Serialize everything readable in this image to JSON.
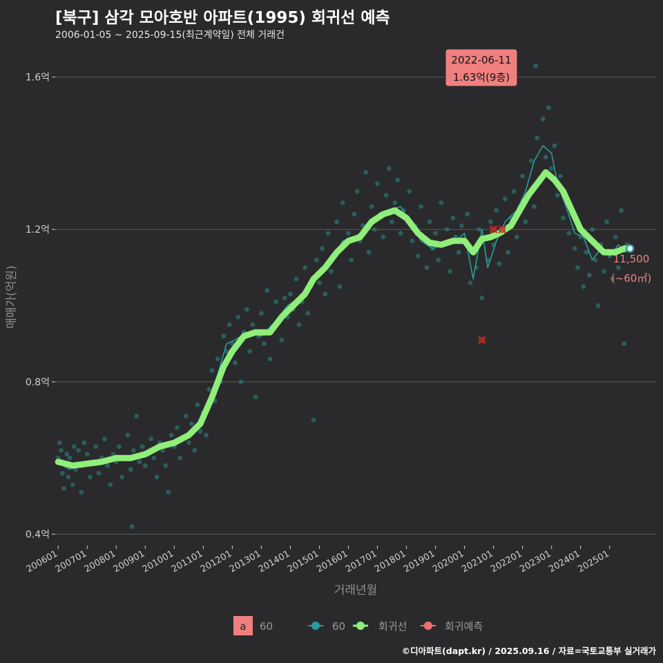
{
  "header": {
    "title": "[북구] 삼각 모아호반 아파트(1995) 회귀선 예측",
    "subtitle": "2006-01-05 ~ 2025-09-15(최근계약일) 전체 거래건"
  },
  "footer": {
    "credit": "©디아파트(dapt.kr) / 2025.09.16 / 자료=국토교통부 실거래가"
  },
  "annotation": {
    "date": "2022-06-11",
    "price": "1.63억(9층)"
  },
  "end_label": {
    "price": "11,500",
    "area": "(~60㎡)"
  },
  "legend": {
    "box_letter": "a",
    "box_label": "60",
    "items": [
      {
        "label": "60",
        "color": "#2a9d9c"
      },
      {
        "label": "회귀선",
        "color": "#90ee7a"
      },
      {
        "label": "회귀예측",
        "color": "#f07070"
      }
    ]
  },
  "colors": {
    "scatter": "#2a9d9c",
    "trend": "#90ee7a",
    "forecast": "#f07070",
    "background": "#2a2a2c"
  },
  "chart_data": {
    "type": "scatter",
    "title": "[북구] 삼각 모아호반 아파트(1995) 회귀선 예측",
    "xlabel": "거래년월",
    "ylabel": "매매가(억원)",
    "ylim": [
      0.37,
      1.69
    ],
    "xlim": [
      2005.9,
      2026.6
    ],
    "y_ticks": [
      0.4,
      0.8,
      1.2,
      1.6
    ],
    "y_tick_labels": [
      "0.4억",
      "0.8억",
      "1.2억",
      "1.6억"
    ],
    "x_ticks": [
      2006,
      2007,
      2008,
      2009,
      2010,
      2011,
      2012,
      2013,
      2014,
      2015,
      2016,
      2017,
      2018,
      2019,
      2020,
      2021,
      2022,
      2023,
      2024,
      2025
    ],
    "x_tick_labels": [
      "200601",
      "200701",
      "200801",
      "200901",
      "201001",
      "201101",
      "201201",
      "201301",
      "201401",
      "201501",
      "201601",
      "201701",
      "201801",
      "201901",
      "202001",
      "202101",
      "202201",
      "202301",
      "202401",
      "202501"
    ],
    "trend_knots": [
      [
        2006.0,
        0.59
      ],
      [
        2006.5,
        0.58
      ],
      [
        2007.0,
        0.585
      ],
      [
        2007.5,
        0.59
      ],
      [
        2008.0,
        0.6
      ],
      [
        2008.5,
        0.6
      ],
      [
        2009.0,
        0.61
      ],
      [
        2009.5,
        0.63
      ],
      [
        2010.0,
        0.64
      ],
      [
        2010.5,
        0.66
      ],
      [
        2010.9,
        0.69
      ],
      [
        2011.3,
        0.76
      ],
      [
        2011.7,
        0.84
      ],
      [
        2012.0,
        0.88
      ],
      [
        2012.4,
        0.92
      ],
      [
        2012.8,
        0.93
      ],
      [
        2013.3,
        0.93
      ],
      [
        2013.7,
        0.97
      ],
      [
        2014.1,
        1.0
      ],
      [
        2014.5,
        1.03
      ],
      [
        2014.8,
        1.07
      ],
      [
        2015.2,
        1.1
      ],
      [
        2015.6,
        1.14
      ],
      [
        2016.0,
        1.17
      ],
      [
        2016.4,
        1.18
      ],
      [
        2016.8,
        1.22
      ],
      [
        2017.2,
        1.24
      ],
      [
        2017.6,
        1.25
      ],
      [
        2018.0,
        1.23
      ],
      [
        2018.4,
        1.19
      ],
      [
        2018.8,
        1.165
      ],
      [
        2019.2,
        1.16
      ],
      [
        2019.6,
        1.17
      ],
      [
        2020.0,
        1.17
      ],
      [
        2020.3,
        1.14
      ],
      [
        2020.6,
        1.175
      ],
      [
        2020.9,
        1.18
      ],
      [
        2021.2,
        1.19
      ],
      [
        2021.6,
        1.21
      ],
      [
        2021.9,
        1.25
      ],
      [
        2022.2,
        1.29
      ],
      [
        2022.5,
        1.32
      ],
      [
        2022.8,
        1.35
      ],
      [
        2023.1,
        1.33
      ],
      [
        2023.4,
        1.3
      ],
      [
        2023.7,
        1.25
      ],
      [
        2024.0,
        1.2
      ],
      [
        2024.4,
        1.17
      ],
      [
        2024.8,
        1.14
      ],
      [
        2025.2,
        1.14
      ],
      [
        2025.5,
        1.15
      ],
      [
        2025.7,
        1.15
      ]
    ],
    "moving_avg_knots": [
      [
        2006.0,
        0.59
      ],
      [
        2006.4,
        0.57
      ],
      [
        2006.8,
        0.59
      ],
      [
        2007.3,
        0.58
      ],
      [
        2007.8,
        0.6
      ],
      [
        2008.4,
        0.595
      ],
      [
        2009.0,
        0.615
      ],
      [
        2009.6,
        0.63
      ],
      [
        2010.2,
        0.65
      ],
      [
        2010.7,
        0.67
      ],
      [
        2011.1,
        0.73
      ],
      [
        2011.5,
        0.82
      ],
      [
        2011.8,
        0.9
      ],
      [
        2012.1,
        0.91
      ],
      [
        2012.5,
        0.93
      ],
      [
        2013.0,
        0.92
      ],
      [
        2013.5,
        0.96
      ],
      [
        2013.9,
        1.0
      ],
      [
        2014.3,
        1.02
      ],
      [
        2014.7,
        1.05
      ],
      [
        2015.0,
        1.08
      ],
      [
        2015.4,
        1.11
      ],
      [
        2015.8,
        1.17
      ],
      [
        2016.2,
        1.18
      ],
      [
        2016.6,
        1.2
      ],
      [
        2017.0,
        1.23
      ],
      [
        2017.4,
        1.25
      ],
      [
        2017.8,
        1.26
      ],
      [
        2018.1,
        1.22
      ],
      [
        2018.5,
        1.17
      ],
      [
        2018.9,
        1.15
      ],
      [
        2019.3,
        1.16
      ],
      [
        2019.7,
        1.17
      ],
      [
        2020.0,
        1.19
      ],
      [
        2020.3,
        1.07
      ],
      [
        2020.6,
        1.2
      ],
      [
        2020.8,
        1.1
      ],
      [
        2021.1,
        1.17
      ],
      [
        2021.4,
        1.22
      ],
      [
        2021.8,
        1.25
      ],
      [
        2022.1,
        1.3
      ],
      [
        2022.4,
        1.38
      ],
      [
        2022.7,
        1.42
      ],
      [
        2023.0,
        1.4
      ],
      [
        2023.2,
        1.32
      ],
      [
        2023.5,
        1.26
      ],
      [
        2023.8,
        1.19
      ],
      [
        2024.1,
        1.18
      ],
      [
        2024.4,
        1.12
      ],
      [
        2024.7,
        1.15
      ],
      [
        2025.0,
        1.13
      ],
      [
        2025.3,
        1.16
      ],
      [
        2025.5,
        1.14
      ],
      [
        2025.7,
        1.15
      ]
    ],
    "scatter_points": [
      [
        2006.0,
        0.6
      ],
      [
        2006.05,
        0.64
      ],
      [
        2006.1,
        0.62
      ],
      [
        2006.15,
        0.56
      ],
      [
        2006.2,
        0.52
      ],
      [
        2006.25,
        0.58
      ],
      [
        2006.3,
        0.61
      ],
      [
        2006.35,
        0.55
      ],
      [
        2006.4,
        0.6
      ],
      [
        2006.5,
        0.53
      ],
      [
        2006.55,
        0.63
      ],
      [
        2006.6,
        0.57
      ],
      [
        2006.7,
        0.62
      ],
      [
        2006.8,
        0.51
      ],
      [
        2006.85,
        0.58
      ],
      [
        2006.9,
        0.64
      ],
      [
        2007.0,
        0.61
      ],
      [
        2007.1,
        0.55
      ],
      [
        2007.2,
        0.59
      ],
      [
        2007.3,
        0.63
      ],
      [
        2007.4,
        0.56
      ],
      [
        2007.5,
        0.6
      ],
      [
        2007.6,
        0.65
      ],
      [
        2007.7,
        0.58
      ],
      [
        2007.8,
        0.53
      ],
      [
        2007.9,
        0.61
      ],
      [
        2008.0,
        0.59
      ],
      [
        2008.1,
        0.63
      ],
      [
        2008.2,
        0.55
      ],
      [
        2008.3,
        0.6
      ],
      [
        2008.4,
        0.66
      ],
      [
        2008.5,
        0.57
      ],
      [
        2008.55,
        0.42
      ],
      [
        2008.6,
        0.62
      ],
      [
        2008.7,
        0.71
      ],
      [
        2008.8,
        0.59
      ],
      [
        2008.9,
        0.63
      ],
      [
        2009.0,
        0.58
      ],
      [
        2009.1,
        0.61
      ],
      [
        2009.2,
        0.65
      ],
      [
        2009.3,
        0.6
      ],
      [
        2009.4,
        0.55
      ],
      [
        2009.5,
        0.64
      ],
      [
        2009.6,
        0.62
      ],
      [
        2009.7,
        0.58
      ],
      [
        2009.8,
        0.51
      ],
      [
        2009.9,
        0.66
      ],
      [
        2010.0,
        0.63
      ],
      [
        2010.1,
        0.68
      ],
      [
        2010.2,
        0.6
      ],
      [
        2010.3,
        0.65
      ],
      [
        2010.4,
        0.71
      ],
      [
        2010.5,
        0.64
      ],
      [
        2010.6,
        0.69
      ],
      [
        2010.7,
        0.62
      ],
      [
        2010.8,
        0.74
      ],
      [
        2010.9,
        0.67
      ],
      [
        2011.0,
        0.72
      ],
      [
        2011.1,
        0.66
      ],
      [
        2011.2,
        0.78
      ],
      [
        2011.3,
        0.83
      ],
      [
        2011.4,
        0.75
      ],
      [
        2011.5,
        0.86
      ],
      [
        2011.6,
        0.8
      ],
      [
        2011.7,
        0.92
      ],
      [
        2011.8,
        0.88
      ],
      [
        2011.9,
        0.95
      ],
      [
        2012.0,
        0.9
      ],
      [
        2012.1,
        0.85
      ],
      [
        2012.2,
        0.97
      ],
      [
        2012.3,
        0.8
      ],
      [
        2012.4,
        0.93
      ],
      [
        2012.5,
        0.99
      ],
      [
        2012.6,
        0.88
      ],
      [
        2012.7,
        0.95
      ],
      [
        2012.8,
        0.76
      ],
      [
        2012.9,
        0.92
      ],
      [
        2013.0,
        0.98
      ],
      [
        2013.1,
        0.9
      ],
      [
        2013.2,
        1.04
      ],
      [
        2013.3,
        0.86
      ],
      [
        2013.4,
        0.94
      ],
      [
        2013.5,
        1.01
      ],
      [
        2013.6,
        0.96
      ],
      [
        2013.7,
        0.91
      ],
      [
        2013.8,
        1.02
      ],
      [
        2013.9,
        0.97
      ],
      [
        2014.0,
        1.03
      ],
      [
        2014.1,
        0.99
      ],
      [
        2014.2,
        1.07
      ],
      [
        2014.3,
        0.95
      ],
      [
        2014.4,
        1.01
      ],
      [
        2014.5,
        1.1
      ],
      [
        2014.6,
        0.98
      ],
      [
        2014.7,
        1.05
      ],
      [
        2014.8,
        0.7
      ],
      [
        2014.9,
        1.12
      ],
      [
        2015.0,
        1.06
      ],
      [
        2015.1,
        1.15
      ],
      [
        2015.2,
        1.03
      ],
      [
        2015.3,
        1.19
      ],
      [
        2015.4,
        1.09
      ],
      [
        2015.5,
        1.13
      ],
      [
        2015.6,
        1.22
      ],
      [
        2015.7,
        1.05
      ],
      [
        2015.8,
        1.27
      ],
      [
        2015.9,
        1.16
      ],
      [
        2016.0,
        1.19
      ],
      [
        2016.1,
        1.12
      ],
      [
        2016.2,
        1.24
      ],
      [
        2016.3,
        1.3
      ],
      [
        2016.4,
        1.17
      ],
      [
        2016.5,
        1.21
      ],
      [
        2016.6,
        1.35
      ],
      [
        2016.7,
        1.14
      ],
      [
        2016.8,
        1.26
      ],
      [
        2016.9,
        1.2
      ],
      [
        2017.0,
        1.32
      ],
      [
        2017.1,
        1.24
      ],
      [
        2017.2,
        1.18
      ],
      [
        2017.3,
        1.29
      ],
      [
        2017.4,
        1.36
      ],
      [
        2017.5,
        1.22
      ],
      [
        2017.6,
        1.27
      ],
      [
        2017.7,
        1.33
      ],
      [
        2017.8,
        1.19
      ],
      [
        2017.9,
        1.25
      ],
      [
        2018.0,
        1.23
      ],
      [
        2018.1,
        1.3
      ],
      [
        2018.2,
        1.17
      ],
      [
        2018.3,
        1.21
      ],
      [
        2018.4,
        1.13
      ],
      [
        2018.5,
        1.26
      ],
      [
        2018.6,
        1.18
      ],
      [
        2018.7,
        1.1
      ],
      [
        2018.8,
        1.22
      ],
      [
        2018.9,
        1.15
      ],
      [
        2019.0,
        1.19
      ],
      [
        2019.1,
        1.12
      ],
      [
        2019.2,
        1.27
      ],
      [
        2019.3,
        1.16
      ],
      [
        2019.4,
        1.2
      ],
      [
        2019.5,
        1.09
      ],
      [
        2019.6,
        1.23
      ],
      [
        2019.7,
        1.18
      ],
      [
        2019.8,
        1.14
      ],
      [
        2019.9,
        1.21
      ],
      [
        2020.0,
        1.17
      ],
      [
        2020.1,
        1.24
      ],
      [
        2020.2,
        1.06
      ],
      [
        2020.3,
        1.15
      ],
      [
        2020.4,
        1.1
      ],
      [
        2020.5,
        1.2
      ],
      [
        2020.6,
        1.02
      ],
      [
        2020.7,
        1.18
      ],
      [
        2020.8,
        1.12
      ],
      [
        2020.9,
        1.22
      ],
      [
        2021.0,
        1.16
      ],
      [
        2021.1,
        1.25
      ],
      [
        2021.2,
        1.11
      ],
      [
        2021.3,
        1.19
      ],
      [
        2021.4,
        1.28
      ],
      [
        2021.5,
        1.14
      ],
      [
        2021.6,
        1.23
      ],
      [
        2021.7,
        1.3
      ],
      [
        2021.8,
        1.18
      ],
      [
        2021.9,
        1.26
      ],
      [
        2022.0,
        1.34
      ],
      [
        2022.1,
        1.22
      ],
      [
        2022.2,
        1.29
      ],
      [
        2022.3,
        1.38
      ],
      [
        2022.4,
        1.26
      ],
      [
        2022.45,
        1.63
      ],
      [
        2022.5,
        1.44
      ],
      [
        2022.6,
        1.33
      ],
      [
        2022.7,
        1.49
      ],
      [
        2022.8,
        1.39
      ],
      [
        2022.9,
        1.52
      ],
      [
        2023.0,
        1.36
      ],
      [
        2023.1,
        1.42
      ],
      [
        2023.2,
        1.29
      ],
      [
        2023.3,
        1.34
      ],
      [
        2023.4,
        1.23
      ],
      [
        2023.5,
        1.28
      ],
      [
        2023.6,
        1.19
      ],
      [
        2023.7,
        1.24
      ],
      [
        2023.8,
        1.15
      ],
      [
        2023.9,
        1.1
      ],
      [
        2024.0,
        1.18
      ],
      [
        2024.1,
        1.05
      ],
      [
        2024.2,
        1.14
      ],
      [
        2024.3,
        1.08
      ],
      [
        2024.4,
        1.2
      ],
      [
        2024.5,
        1.12
      ],
      [
        2024.6,
        1.0
      ],
      [
        2024.7,
        1.16
      ],
      [
        2024.8,
        1.09
      ],
      [
        2024.9,
        1.22
      ],
      [
        2025.0,
        1.13
      ],
      [
        2025.1,
        1.07
      ],
      [
        2025.2,
        1.18
      ],
      [
        2025.3,
        1.1
      ],
      [
        2025.4,
        1.25
      ],
      [
        2025.5,
        0.9
      ],
      [
        2025.6,
        1.16
      ],
      [
        2025.7,
        1.15
      ]
    ],
    "forecast_points": [
      [
        2020.6,
        0.91
      ],
      [
        2021.0,
        1.2
      ],
      [
        2021.3,
        1.2
      ]
    ],
    "last_point": [
      2025.7,
      1.15
    ]
  }
}
